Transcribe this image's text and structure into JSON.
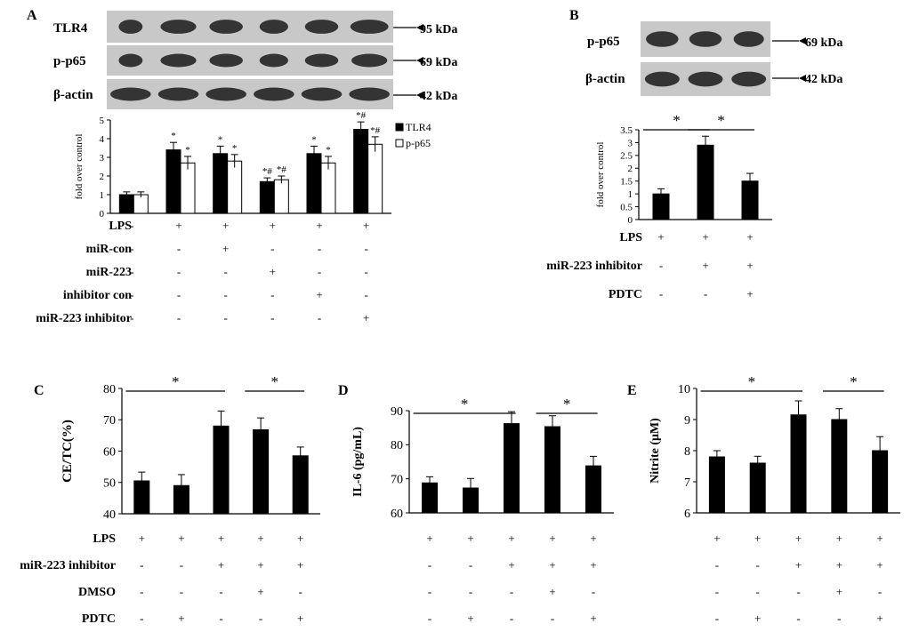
{
  "panel_letters": [
    "A",
    "B",
    "C",
    "D",
    "E"
  ],
  "blots": {
    "A": {
      "rows": [
        {
          "label": "TLR4",
          "size": "95 kDa"
        },
        {
          "label": "p-p65",
          "size": "69 kDa"
        },
        {
          "label": "β-actin",
          "size": "42 kDa"
        }
      ]
    },
    "B": {
      "rows": [
        {
          "label": "p-p65",
          "size": "69 kDa"
        },
        {
          "label": "β-actin",
          "size": "42 kDa"
        }
      ]
    }
  },
  "colors": {
    "bar_dark": "#000000",
    "bar_light": "#ffffff",
    "blot_bg": "#c8c8c8",
    "band": "#1a1a1a"
  },
  "conditions": {
    "A": [
      {
        "label": "LPS",
        "signs": [
          "-",
          "+",
          "+",
          "+",
          "+",
          "+"
        ]
      },
      {
        "label": "miR-con",
        "signs": [
          "-",
          "-",
          "+",
          "-",
          "-",
          "-"
        ]
      },
      {
        "label": "miR-223",
        "signs": [
          "-",
          "-",
          "-",
          "+",
          "-",
          "-"
        ]
      },
      {
        "label": "inhibitor con",
        "signs": [
          "-",
          "-",
          "-",
          "-",
          "+",
          "-"
        ]
      },
      {
        "label": "miR-223 inhibitor",
        "signs": [
          "-",
          "-",
          "-",
          "-",
          "-",
          "+"
        ]
      }
    ],
    "B": [
      {
        "label": "LPS",
        "signs": [
          "+",
          "+",
          "+"
        ]
      },
      {
        "label": "miR-223 inhibitor",
        "signs": [
          "-",
          "+",
          "+"
        ]
      },
      {
        "label": "PDTC",
        "signs": [
          "-",
          "-",
          "+"
        ]
      }
    ],
    "C": [
      {
        "label": "LPS",
        "signs": [
          "+",
          "+",
          "+",
          "+",
          "+"
        ]
      },
      {
        "label": "miR-223 inhibitor",
        "signs": [
          "-",
          "-",
          "+",
          "+",
          "+"
        ]
      },
      {
        "label": "DMSO",
        "signs": [
          "-",
          "-",
          "-",
          "+",
          "-"
        ]
      },
      {
        "label": "PDTC",
        "signs": [
          "-",
          "+",
          "-",
          "-",
          "+"
        ]
      }
    ],
    "D": [
      {
        "label": "",
        "signs": [
          "+",
          "+",
          "+",
          "+",
          "+"
        ]
      },
      {
        "label": "",
        "signs": [
          "-",
          "-",
          "+",
          "+",
          "+"
        ]
      },
      {
        "label": "",
        "signs": [
          "-",
          "-",
          "-",
          "+",
          "-"
        ]
      },
      {
        "label": "",
        "signs": [
          "-",
          "+",
          "-",
          "-",
          "+"
        ]
      }
    ],
    "E": [
      {
        "label": "",
        "signs": [
          "+",
          "+",
          "+",
          "+",
          "+"
        ]
      },
      {
        "label": "",
        "signs": [
          "-",
          "-",
          "+",
          "+",
          "+"
        ]
      },
      {
        "label": "",
        "signs": [
          "-",
          "-",
          "-",
          "+",
          "-"
        ]
      },
      {
        "label": "",
        "signs": [
          "-",
          "+",
          "-",
          "-",
          "+"
        ]
      }
    ]
  },
  "chart_data": [
    {
      "panel": "A",
      "type": "bar",
      "ylabel": "fold over control",
      "ylim": [
        0,
        5
      ],
      "yticks": [
        0,
        1,
        2,
        3,
        4,
        5
      ],
      "legend": "top-right",
      "series": [
        {
          "name": "TLR4",
          "color": "#000000",
          "values": [
            1.0,
            3.4,
            3.2,
            1.7,
            3.2,
            4.5
          ],
          "errors": [
            0.15,
            0.4,
            0.4,
            0.2,
            0.4,
            0.4
          ],
          "marks": [
            "",
            "*",
            "*",
            "*#",
            "*",
            "*#"
          ]
        },
        {
          "name": "p-p65",
          "color": "#ffffff",
          "values": [
            1.0,
            2.7,
            2.8,
            1.8,
            2.7,
            3.7
          ],
          "errors": [
            0.15,
            0.35,
            0.35,
            0.2,
            0.35,
            0.4
          ],
          "marks": [
            "",
            "*",
            "*",
            "*#",
            "*",
            "*#"
          ]
        }
      ]
    },
    {
      "panel": "B",
      "type": "bar",
      "ylabel": "fold over control",
      "ylim": [
        0,
        3.5
      ],
      "yticks": [
        0,
        0.5,
        1,
        1.5,
        2,
        2.5,
        3,
        3.5
      ],
      "series": [
        {
          "values": [
            1.0,
            2.9,
            1.5
          ],
          "errors": [
            0.2,
            0.35,
            0.3
          ]
        }
      ],
      "significance": [
        {
          "from": 0,
          "to": 1,
          "mark": "*"
        },
        {
          "from": 1,
          "to": 2,
          "mark": "*"
        }
      ]
    },
    {
      "panel": "C",
      "type": "bar",
      "ylabel": "CE/TC(%)",
      "ylim": [
        40,
        80
      ],
      "yticks": [
        40,
        50,
        60,
        70,
        80
      ],
      "series": [
        {
          "values": [
            50.5,
            49,
            68,
            66.8,
            58.5
          ],
          "errors": [
            2.8,
            3.5,
            4.8,
            3.8,
            2.8
          ]
        }
      ],
      "significance": [
        {
          "from": 0,
          "to": 2,
          "mark": "*"
        },
        {
          "from": 3,
          "to": 4,
          "mark": "*"
        }
      ]
    },
    {
      "panel": "D",
      "type": "bar",
      "ylabel": "IL-6  (pg/mL)",
      "ylim": [
        60,
        90
      ],
      "yticks": [
        60,
        70,
        80,
        90
      ],
      "series": [
        {
          "values": [
            68.8,
            67.3,
            86.2,
            85.3,
            73.8
          ],
          "errors": [
            1.8,
            2.8,
            3.5,
            3.2,
            2.8
          ]
        }
      ],
      "significance": [
        {
          "from": 0,
          "to": 2,
          "mark": "*"
        },
        {
          "from": 3,
          "to": 4,
          "mark": "*"
        }
      ]
    },
    {
      "panel": "E",
      "type": "bar",
      "ylabel": "Nitrite  (μM)",
      "ylim": [
        6,
        10
      ],
      "yticks": [
        6,
        7,
        8,
        9,
        10
      ],
      "series": [
        {
          "values": [
            7.8,
            7.6,
            9.15,
            9.0,
            8.0
          ],
          "errors": [
            0.2,
            0.22,
            0.45,
            0.35,
            0.45
          ]
        }
      ],
      "significance": [
        {
          "from": 0,
          "to": 2,
          "mark": "*"
        },
        {
          "from": 3,
          "to": 4,
          "mark": "*"
        }
      ]
    }
  ]
}
